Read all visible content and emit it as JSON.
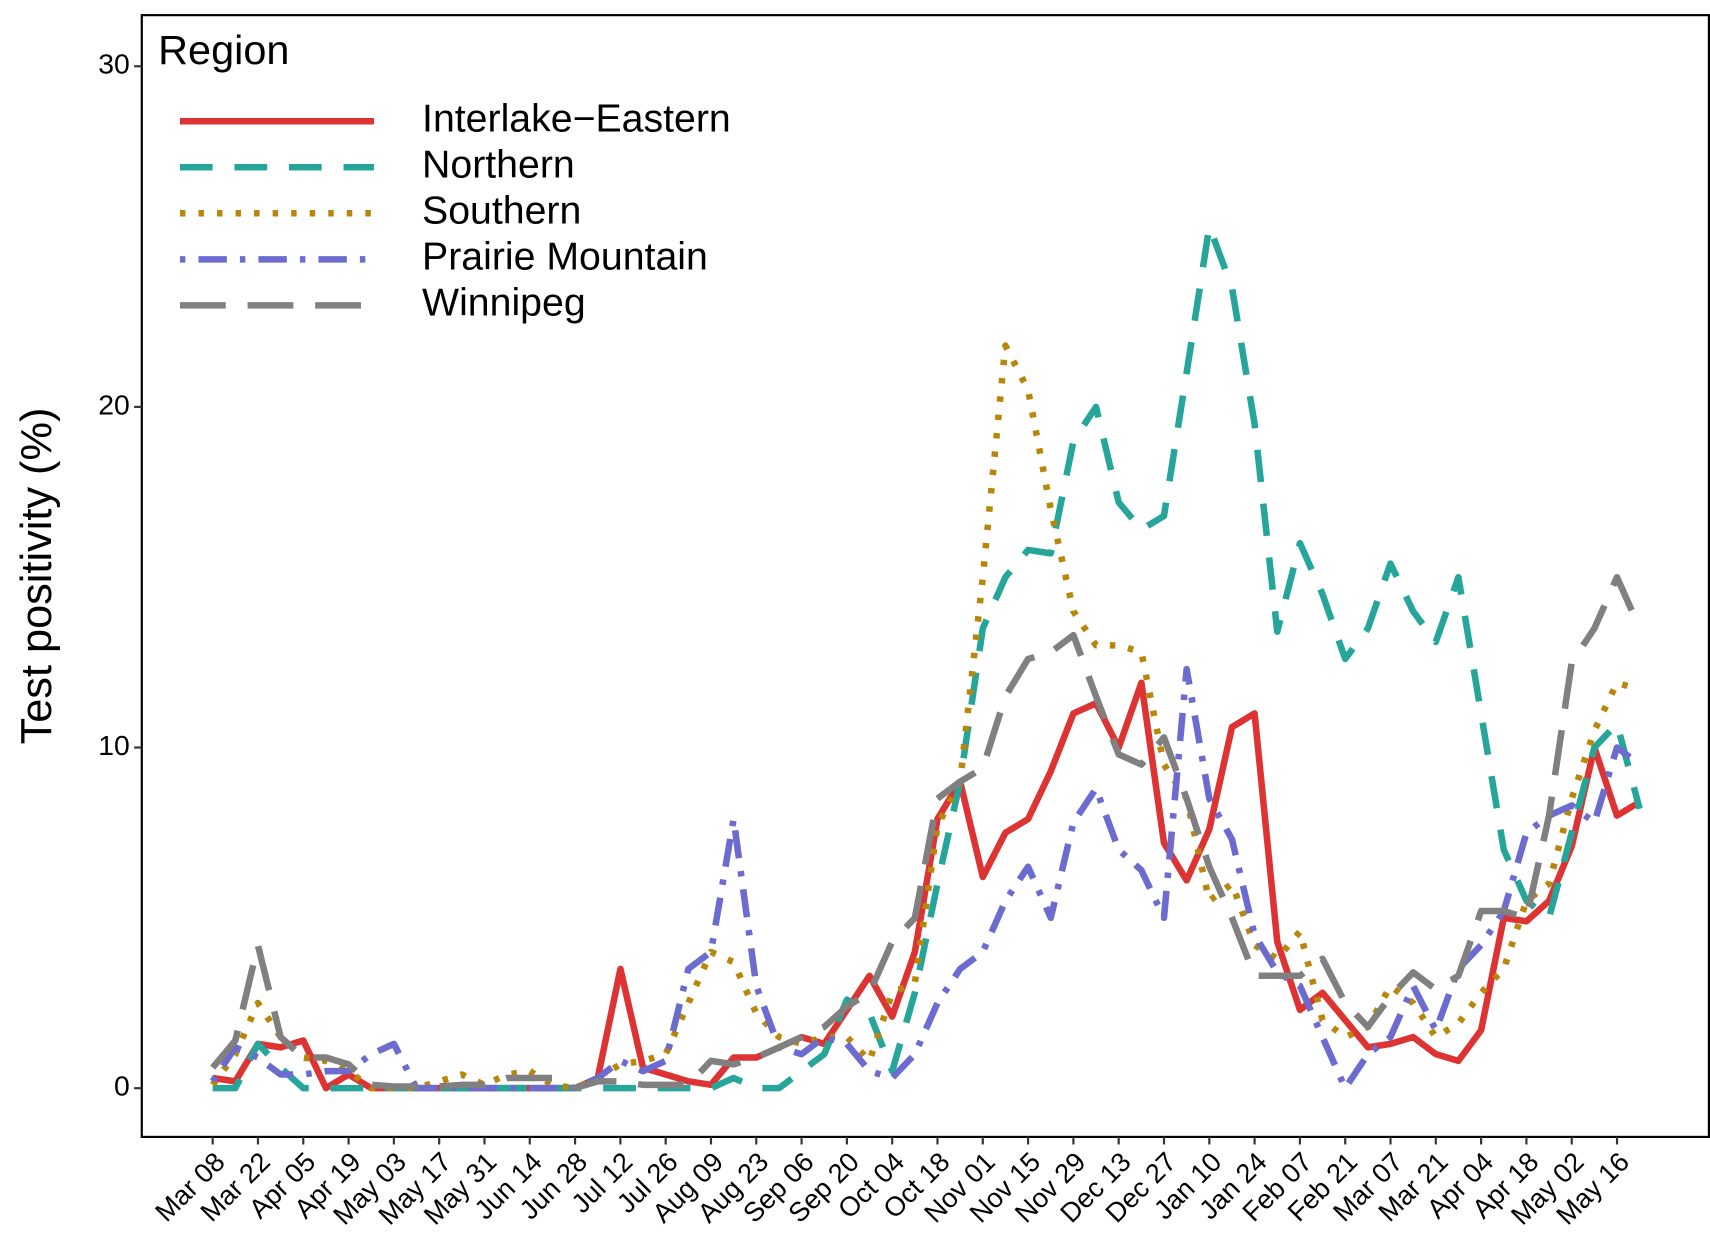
{
  "chart_data": {
    "type": "line",
    "ylabel": "Test positivity (%)",
    "legend_title": "Region",
    "legend": "top-left",
    "categories": [
      "Mar 08",
      null,
      "Mar 22",
      null,
      "Apr 05",
      null,
      "Apr 19",
      null,
      "May 03",
      null,
      "May 17",
      null,
      "May 31",
      null,
      "Jun 14",
      null,
      "Jun 28",
      null,
      "Jul 12",
      null,
      "Jul 26",
      null,
      "Aug 09",
      null,
      "Aug 23",
      null,
      "Sep 06",
      null,
      "Sep 20",
      null,
      "Oct 04",
      null,
      "Oct 18",
      null,
      "Nov 01",
      null,
      "Nov 15",
      null,
      "Nov 29",
      null,
      "Dec 13",
      null,
      "Dec 27",
      null,
      "Jan 10",
      null,
      "Jan 24",
      null,
      "Feb 07",
      null,
      "Feb 21",
      null,
      "Mar 07",
      null,
      "Mar 21",
      null,
      "Apr 04",
      null,
      "Apr 18",
      null,
      "May 02",
      null,
      "May 16",
      null
    ],
    "ylim": [
      -1.43,
      31.5
    ],
    "yticks": [
      0,
      10,
      20,
      30
    ],
    "series": [
      {
        "name": "Interlake−Eastern",
        "color": "#dd3333",
        "dash": "none",
        "values": [
          0.3,
          0.2,
          1.3,
          1.2,
          1.4,
          0,
          0.4,
          0,
          0,
          0,
          0,
          0,
          0,
          0,
          0,
          0,
          0,
          0.3,
          3.5,
          0.6,
          0.4,
          0.2,
          0.1,
          0.9,
          0.9,
          1.2,
          1.5,
          1.3,
          2.3,
          3.3,
          2.1,
          4.0,
          7.9,
          9.0,
          6.2,
          7.5,
          7.9,
          9.3,
          11.0,
          11.3,
          10.0,
          11.9,
          7.2,
          6.1,
          7.6,
          10.6,
          11.0,
          4.3,
          2.3,
          2.8,
          2.0,
          1.2,
          1.3,
          1.5,
          1.0,
          0.8,
          1.7,
          5.0,
          4.9,
          5.5,
          7.1,
          10.0,
          8.0,
          8.4
        ]
      },
      {
        "name": "Northern",
        "color": "#26a69a",
        "dash": "30 20",
        "values": [
          0,
          0,
          1.3,
          0.6,
          0,
          0,
          0,
          0,
          0,
          0,
          0,
          0,
          0,
          0,
          0,
          0,
          0,
          0,
          0,
          0,
          0,
          0,
          0,
          0.3,
          0,
          0,
          0.5,
          1.0,
          2.6,
          2.2,
          0.5,
          2.8,
          6.0,
          9.0,
          13.5,
          15.0,
          15.8,
          15.7,
          19.0,
          20.0,
          17.2,
          16.4,
          16.8,
          21.0,
          25.3,
          23.5,
          19.5,
          13.4,
          16.0,
          14.5,
          12.6,
          13.5,
          15.4,
          14.0,
          13.1,
          15.0,
          11.0,
          7.0,
          5.5,
          5.0,
          7.5,
          10.0,
          10.7,
          8.2
        ]
      },
      {
        "name": "Southern",
        "color": "#b8860b",
        "dash": "5 12",
        "values": [
          0.1,
          1.0,
          2.5,
          1.5,
          0.9,
          0.8,
          0.5,
          0,
          0,
          0,
          0.2,
          0.4,
          0.1,
          0.4,
          0.5,
          0.1,
          0,
          0.3,
          0.7,
          0.8,
          1.0,
          2.5,
          4.0,
          3.7,
          2.2,
          1.5,
          1.3,
          1.5,
          1.5,
          0.8,
          2.8,
          3.1,
          7.7,
          9.0,
          15.0,
          21.8,
          20.5,
          17.0,
          14.0,
          13.0,
          13.0,
          12.8,
          9.5,
          8.5,
          5.5,
          6.0,
          4.2,
          3.8,
          4.6,
          2.0,
          1.5,
          1.8,
          3.0,
          2.5,
          1.5,
          1.9,
          2.8,
          3.5,
          5.5,
          6.0,
          8.5,
          10.5,
          11.9,
          11.7
        ]
      },
      {
        "name": "Prairie Mountain",
        "color": "#6b6bd0",
        "dash": "5 12 26 12",
        "values": [
          0.2,
          1.2,
          0.9,
          0.4,
          0.4,
          0.5,
          0.5,
          1.0,
          1.3,
          0,
          0,
          0,
          0,
          0,
          0,
          0,
          0,
          0.3,
          0.8,
          0.5,
          0.8,
          3.5,
          4.0,
          7.9,
          3.0,
          1.2,
          1.0,
          1.5,
          1.3,
          0.5,
          0.3,
          1.0,
          2.5,
          3.5,
          4.0,
          5.5,
          6.5,
          5.0,
          7.8,
          8.8,
          7.0,
          6.4,
          5.0,
          12.3,
          8.5,
          7.3,
          4.5,
          3.4,
          3.0,
          1.5,
          0,
          1.0,
          1.5,
          3.0,
          1.7,
          3.5,
          4.2,
          5.2,
          7.5,
          8.0,
          8.3,
          7.8,
          10.0,
          9.5
        ]
      },
      {
        "name": "Winnipeg",
        "color": "#808080",
        "dash": "42 20",
        "values": [
          0.6,
          1.4,
          4.2,
          1.5,
          0.9,
          0.9,
          0.7,
          0.1,
          0.05,
          0.05,
          0.05,
          0.1,
          0.1,
          0.3,
          0.3,
          0.3,
          0,
          0.2,
          0.2,
          0.1,
          0.1,
          0.1,
          0.8,
          0.7,
          0.9,
          1.2,
          1.5,
          1.8,
          2.4,
          2.8,
          4.3,
          5.0,
          8.5,
          9.0,
          9.4,
          11.5,
          12.6,
          12.8,
          13.3,
          11.5,
          9.8,
          9.5,
          10.3,
          8.5,
          6.5,
          5.0,
          3.3,
          3.3,
          3.3,
          3.8,
          2.5,
          1.8,
          2.7,
          3.4,
          2.9,
          3.3,
          5.2,
          5.2,
          5.0,
          8.0,
          12.5,
          13.5,
          15.0,
          13.5
        ]
      }
    ]
  }
}
